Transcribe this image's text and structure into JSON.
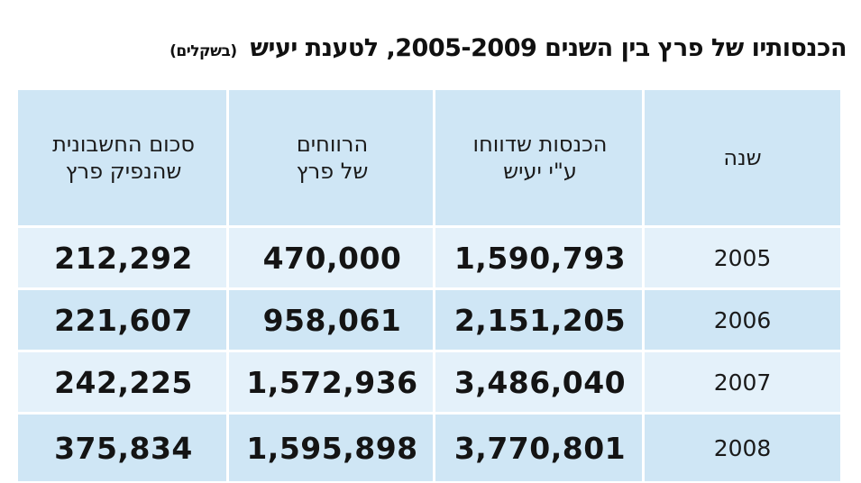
{
  "title": {
    "main": "הכנסותיו של פרץ בין השנים 2005-2009, לטענת יעיש",
    "unit": "(בשקלים)"
  },
  "table": {
    "headers": {
      "year": "שנה",
      "income": "הכנסות שדווחו\nע\"י יעיש",
      "profit": "הרווחים\nשל פרץ",
      "bill": "סכום החשבונית\nשהנפיק פרץ"
    },
    "rows": [
      {
        "year": "2005",
        "income": "1,590,793",
        "profit": "470,000",
        "bill": "212,292"
      },
      {
        "year": "2006",
        "income": "2,151,205",
        "profit": "958,061",
        "bill": "221,607"
      },
      {
        "year": "2007",
        "income": "3,486,040",
        "profit": "1,572,936",
        "bill": "242,225"
      },
      {
        "year": "2008",
        "income": "3,770,801",
        "profit": "1,595,898",
        "bill": "375,834"
      }
    ]
  }
}
